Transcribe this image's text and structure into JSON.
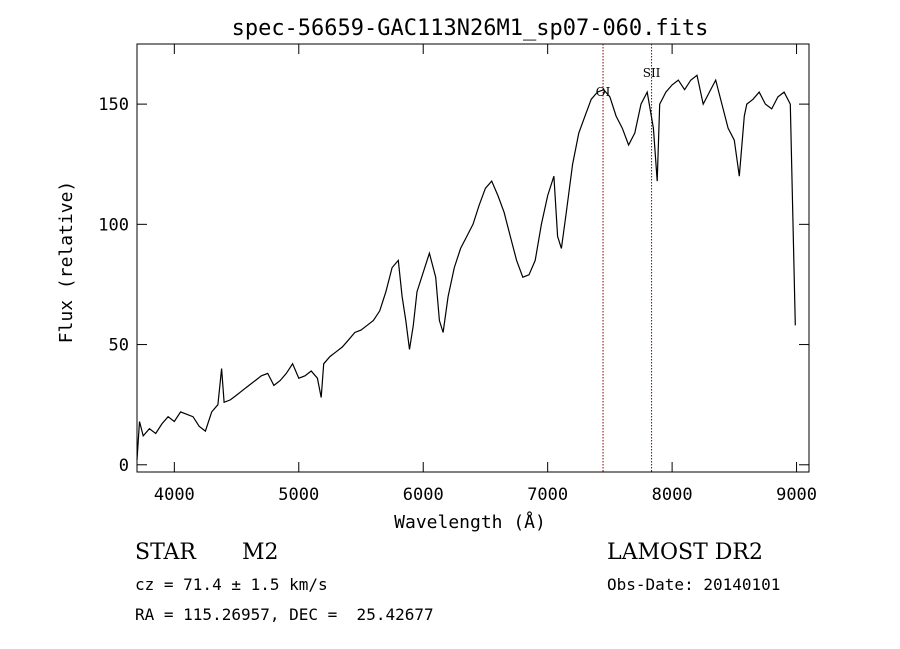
{
  "chart_data": {
    "type": "line",
    "title": "spec-56659-GAC113N26M1_sp07-060.fits",
    "xlabel": "Wavelength (Å)",
    "ylabel": "Flux (relative)",
    "xlim": [
      3700,
      9100
    ],
    "ylim": [
      -3,
      175
    ],
    "x_ticks": [
      4000,
      5000,
      6000,
      7000,
      8000,
      9000
    ],
    "y_ticks": [
      0,
      50,
      100,
      150
    ],
    "grid": false,
    "series": [
      {
        "name": "",
        "color": "#000000",
        "x": [
          3700,
          3720,
          3750,
          3800,
          3850,
          3900,
          3950,
          4000,
          4050,
          4100,
          4150,
          4200,
          4250,
          4300,
          4350,
          4380,
          4400,
          4450,
          4500,
          4550,
          4600,
          4650,
          4700,
          4750,
          4800,
          4850,
          4900,
          4950,
          5000,
          5050,
          5100,
          5150,
          5180,
          5200,
          5250,
          5300,
          5350,
          5400,
          5450,
          5500,
          5550,
          5600,
          5650,
          5700,
          5750,
          5800,
          5830,
          5860,
          5890,
          5920,
          5950,
          6000,
          6050,
          6100,
          6130,
          6160,
          6200,
          6250,
          6300,
          6350,
          6400,
          6450,
          6500,
          6550,
          6600,
          6650,
          6700,
          6750,
          6800,
          6850,
          6900,
          6950,
          7000,
          7050,
          7080,
          7110,
          7150,
          7200,
          7250,
          7300,
          7350,
          7400,
          7450,
          7500,
          7550,
          7600,
          7650,
          7700,
          7750,
          7800,
          7850,
          7880,
          7900,
          7950,
          8000,
          8050,
          8100,
          8150,
          8200,
          8250,
          8300,
          8350,
          8400,
          8450,
          8500,
          8540,
          8580,
          8600,
          8650,
          8700,
          8750,
          8800,
          8850,
          8900,
          8950,
          8990
        ],
        "y": [
          2,
          18,
          12,
          15,
          13,
          17,
          20,
          18,
          22,
          21,
          20,
          16,
          14,
          22,
          25,
          40,
          26,
          27,
          29,
          31,
          33,
          35,
          37,
          38,
          33,
          35,
          38,
          42,
          36,
          37,
          39,
          36,
          28,
          42,
          45,
          47,
          49,
          52,
          55,
          56,
          58,
          60,
          64,
          72,
          82,
          85,
          70,
          60,
          48,
          58,
          72,
          80,
          88,
          78,
          60,
          55,
          70,
          82,
          90,
          95,
          100,
          108,
          115,
          118,
          112,
          105,
          95,
          85,
          78,
          79,
          85,
          100,
          112,
          120,
          95,
          90,
          105,
          125,
          138,
          145,
          152,
          155,
          156,
          153,
          145,
          140,
          133,
          138,
          150,
          155,
          140,
          118,
          150,
          155,
          158,
          160,
          156,
          160,
          162,
          150,
          155,
          160,
          150,
          140,
          135,
          120,
          145,
          150,
          152,
          155,
          150,
          148,
          153,
          155,
          150,
          58
        ]
      }
    ],
    "markers": [
      {
        "x": 7445,
        "label": "OI",
        "color": "#8b0000"
      },
      {
        "x": 7835,
        "label": "SII",
        "color": "#8b0000"
      }
    ]
  },
  "info": {
    "object_class": "STAR",
    "subclass": "M2",
    "survey": "LAMOST DR2",
    "velocity": "cz = 71.4 ± 1.5 km/s",
    "obs_date": "Obs-Date: 20140101",
    "coords": "RA = 115.26957, DEC =  25.42677"
  }
}
